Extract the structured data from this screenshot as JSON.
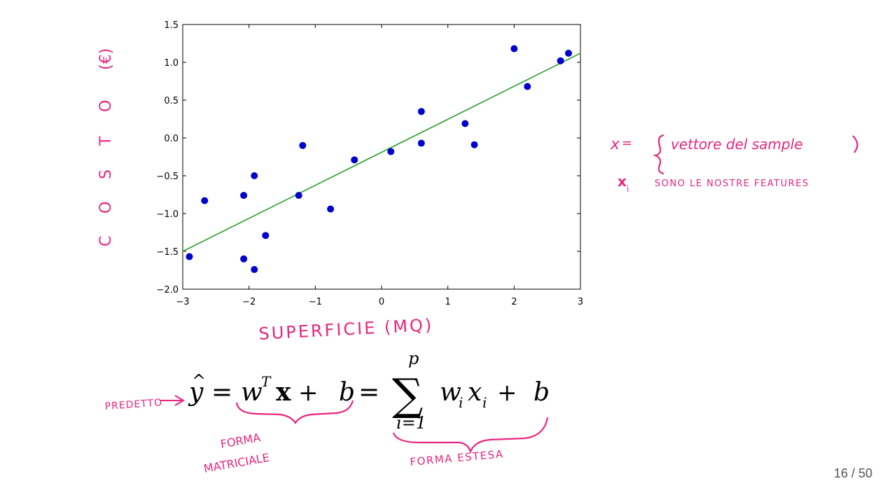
{
  "chart_data": {
    "type": "scatter",
    "title": "",
    "xlabel": "SUPERFICIE (MQ)",
    "ylabel": "COSTO (€)",
    "xlim": [
      -3,
      3
    ],
    "ylim": [
      -2.0,
      1.5
    ],
    "xticks": [
      -3,
      -2,
      -1,
      0,
      1,
      2,
      3
    ],
    "xtick_labels": [
      "−3",
      "−2",
      "−1",
      "0",
      "1",
      "2",
      "3"
    ],
    "yticks": [
      1.5,
      1.0,
      0.5,
      0.0,
      -0.5,
      -1.0,
      -1.5,
      -2.0
    ],
    "ytick_labels": [
      "1.5",
      "1.0",
      "0.5",
      "0.0",
      "−0.5",
      "−1.0",
      "−1.5",
      "−2.0"
    ],
    "grid": false,
    "series": [
      {
        "kind": "points",
        "color": "#0000cc",
        "x": [
          -2.9,
          -2.67,
          -2.08,
          -2.08,
          -1.92,
          -1.92,
          -1.75,
          -1.25,
          -1.19,
          -0.77,
          -0.41,
          0.14,
          0.6,
          0.6,
          1.26,
          1.4,
          2.0,
          2.2,
          2.7,
          2.82
        ],
        "y": [
          -1.57,
          -0.83,
          -0.76,
          -1.6,
          -0.5,
          -1.74,
          -1.29,
          -0.76,
          -0.1,
          -0.94,
          -0.29,
          -0.18,
          0.35,
          -0.07,
          0.19,
          -0.09,
          1.18,
          0.68,
          1.02,
          1.12
        ]
      },
      {
        "kind": "fit-line",
        "color": "#2ca02c",
        "x": [
          -3,
          3
        ],
        "y": [
          -1.5,
          1.12
        ]
      }
    ]
  },
  "annotations": {
    "ylabel_letters": [
      "C",
      "O",
      "S",
      "T",
      "O",
      "(€)"
    ],
    "xlabel": "SUPERFICIE (MQ)",
    "x_def_symbol": "x",
    "x_def_equals": "=",
    "x_def_text": "vettore del sample",
    "xi_symbol": "x",
    "xi_sub": "i",
    "xi_text": "SONO LE NOSTRE FEATURES",
    "predetto": "PREDETTO",
    "forma_matriciale_1": "FORMA",
    "forma_matriciale_2": "MATRICIALE",
    "forma_estesa": "FORMA ESTESA"
  },
  "formula": {
    "lhs_var": "y",
    "lhs_hat": "^",
    "eq": "=",
    "w": "w",
    "T": "T",
    "x": "x",
    "plus": "+",
    "b": "b",
    "sum": "∑",
    "sum_upper": "p",
    "sum_lower": "i=1",
    "wi": "w",
    "i": "i",
    "xi": "x"
  },
  "page_number": "16 / 50",
  "colors": {
    "ink": "#e8267f",
    "points": "#0000cc",
    "fit_line": "#2ca02c"
  }
}
